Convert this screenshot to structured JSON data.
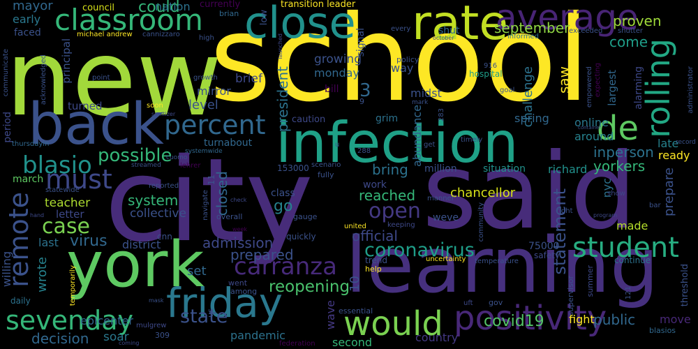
{
  "words": [
    {
      "text": "new",
      "color": "#a2d93b"
    },
    {
      "text": "school",
      "color": "#fde725"
    },
    {
      "text": "city",
      "color": "#472c7a"
    },
    {
      "text": "said",
      "color": "#472c7a"
    },
    {
      "text": "york",
      "color": "#5ec962"
    },
    {
      "text": "learning",
      "color": "#46307e"
    },
    {
      "text": "back",
      "color": "#3b528b"
    },
    {
      "text": "infection",
      "color": "#1fa187"
    },
    {
      "text": "rate",
      "color": "#c2df23"
    },
    {
      "text": "average",
      "color": "#482475"
    },
    {
      "text": "close",
      "color": "#21918c"
    },
    {
      "text": "classroom",
      "color": "#35b779"
    },
    {
      "text": "friday",
      "color": "#2a788e"
    },
    {
      "text": "positivity",
      "color": "#482878"
    },
    {
      "text": "would",
      "color": "#7ad151"
    },
    {
      "text": "sevenday",
      "color": "#35b779"
    },
    {
      "text": "remote",
      "color": "#3b528b"
    },
    {
      "text": "rolling",
      "color": "#22a884"
    },
    {
      "text": "de",
      "color": "#5ec962"
    },
    {
      "text": "student",
      "color": "#27ad81"
    },
    {
      "text": "percent",
      "color": "#31688e"
    },
    {
      "text": "must",
      "color": "#3e4989"
    },
    {
      "text": "blasio",
      "color": "#21918c"
    },
    {
      "text": "possible",
      "color": "#35b779"
    },
    {
      "text": "case",
      "color": "#7ad151"
    },
    {
      "text": "carranza",
      "color": "#472a7a"
    },
    {
      "text": "coronavirus",
      "color": "#1f9e89"
    },
    {
      "text": "open",
      "color": "#443983"
    },
    {
      "text": "reopening",
      "color": "#4ac16d"
    },
    {
      "text": "state",
      "color": "#3b528b"
    },
    {
      "text": "covid19",
      "color": "#54c568"
    },
    {
      "text": "mayor",
      "color": "#31688e"
    },
    {
      "text": "early",
      "color": "#2a788e"
    },
    {
      "text": "faced",
      "color": "#3b528b"
    },
    {
      "text": "council",
      "color": "#d8e219"
    },
    {
      "text": "could",
      "color": "#35b779"
    },
    {
      "text": "nation",
      "color": "#2c728e"
    },
    {
      "text": "currently",
      "color": "#440154"
    },
    {
      "text": "brian",
      "color": "#31688e"
    },
    {
      "text": "low",
      "color": "#3b528b"
    },
    {
      "text": "transition leader",
      "color": "#fde725"
    },
    {
      "text": "september",
      "color": "#90d743"
    },
    {
      "text": "proven",
      "color": "#9fda3a"
    },
    {
      "text": "come",
      "color": "#1f9e89"
    },
    {
      "text": "late",
      "color": "#26828e"
    },
    {
      "text": "ready",
      "color": "#fde725"
    },
    {
      "text": "prepare",
      "color": "#3b528b"
    },
    {
      "text": "inperson",
      "color": "#2c728e"
    },
    {
      "text": "yorkers",
      "color": "#35b779"
    },
    {
      "text": "richard",
      "color": "#21918c"
    },
    {
      "text": "nyc",
      "color": "#2c728e"
    },
    {
      "text": "made",
      "color": "#b5de2b"
    },
    {
      "text": "public",
      "color": "#31688e"
    },
    {
      "text": "fight",
      "color": "#fde725"
    },
    {
      "text": "move",
      "color": "#482878"
    },
    {
      "text": "statement",
      "color": "#3b528b"
    },
    {
      "text": "chancellor",
      "color": "#d8e219"
    },
    {
      "text": "situation",
      "color": "#21918c"
    },
    {
      "text": "million",
      "color": "#3b528b"
    },
    {
      "text": "bring",
      "color": "#2c728e"
    },
    {
      "text": "reached",
      "color": "#35b779"
    },
    {
      "text": "official",
      "color": "#3e4989"
    },
    {
      "text": "prepared",
      "color": "#3b528b"
    },
    {
      "text": "admission",
      "color": "#3e4989"
    },
    {
      "text": "closed",
      "color": "#31688e"
    },
    {
      "text": "system",
      "color": "#35b779"
    },
    {
      "text": "collective",
      "color": "#3b528b"
    },
    {
      "text": "go",
      "color": "#26828e"
    },
    {
      "text": "teacher",
      "color": "#addc30"
    },
    {
      "text": "letter",
      "color": "#3e4989"
    },
    {
      "text": "virus",
      "color": "#31688e"
    },
    {
      "text": "district",
      "color": "#3b528b"
    },
    {
      "text": "last",
      "color": "#2c728e"
    },
    {
      "text": "wrote",
      "color": "#26828e"
    },
    {
      "text": "willing",
      "color": "#3b528b"
    },
    {
      "text": "march",
      "color": "#5ec962"
    },
    {
      "text": "blasios",
      "color": "#31688e"
    },
    {
      "text": "decision",
      "color": "#31688e"
    },
    {
      "text": "soar",
      "color": "#2a788e"
    },
    {
      "text": "pandemic",
      "color": "#2c728e"
    },
    {
      "text": "second",
      "color": "#35b779"
    },
    {
      "text": "country",
      "color": "#443983"
    },
    {
      "text": "epicenter",
      "color": "#31688e"
    },
    {
      "text": "set",
      "color": "#31688e"
    },
    {
      "text": "wave",
      "color": "#443983"
    },
    {
      "text": "10",
      "color": "#3b528b"
    },
    {
      "text": "3",
      "color": "#31688e"
    },
    {
      "text": "growing",
      "color": "#3b528b"
    },
    {
      "text": "monday",
      "color": "#31688e"
    },
    {
      "text": "brief",
      "color": "#3e4989"
    },
    {
      "text": "president",
      "color": "#2c728e"
    },
    {
      "text": "mirror",
      "color": "#3b528b"
    },
    {
      "text": "midst",
      "color": "#3b528b"
    },
    {
      "text": "bill",
      "color": "#440154"
    },
    {
      "text": "saw",
      "color": "#fde725"
    },
    {
      "text": "way",
      "color": "#3b528b"
    },
    {
      "text": "abundance",
      "color": "#31688e"
    },
    {
      "text": "challenge",
      "color": "#2c728e"
    },
    {
      "text": "largest",
      "color": "#31688e"
    },
    {
      "text": "alarming",
      "color": "#3e4989"
    },
    {
      "text": "hospital",
      "color": "#1f9e89"
    },
    {
      "text": "around",
      "color": "#26828e"
    },
    {
      "text": "online",
      "color": "#2a788e"
    },
    {
      "text": "spring",
      "color": "#31688e"
    },
    {
      "text": "level",
      "color": "#3b528b"
    },
    {
      "text": "turned",
      "color": "#3e4989"
    },
    {
      "text": "principal",
      "color": "#3b528b"
    },
    {
      "text": "period",
      "color": "#3e4989"
    },
    {
      "text": "caution",
      "color": "#3e4989"
    },
    {
      "text": "grim",
      "color": "#2c728e"
    },
    {
      "text": "shut",
      "color": "#31688e"
    },
    {
      "text": "signal",
      "color": "#3b528b"
    },
    {
      "text": "turnabout",
      "color": "#31688e"
    },
    {
      "text": "work",
      "color": "#3e4989"
    },
    {
      "text": "class",
      "color": "#3b528b"
    },
    {
      "text": "weve",
      "color": "#3b528b"
    },
    {
      "text": "quickly",
      "color": "#3b528b"
    },
    {
      "text": "united",
      "color": "#fde725"
    },
    {
      "text": "75000",
      "color": "#3b528b"
    },
    {
      "text": "safety",
      "color": "#3e4989"
    },
    {
      "text": "continue",
      "color": "#2c728e"
    },
    {
      "text": "threshold",
      "color": "#3b528b"
    },
    {
      "text": "supervisor",
      "color": "#3b528b"
    },
    {
      "text": "summer",
      "color": "#3e4989"
    },
    {
      "text": "temperature",
      "color": "#3b528b"
    },
    {
      "text": "uncertainty",
      "color": "#fde725"
    },
    {
      "text": "trend",
      "color": "#3b528b"
    },
    {
      "text": "help",
      "color": "#fde725"
    },
    {
      "text": "essential",
      "color": "#3b528b"
    },
    {
      "text": "federation",
      "color": "#440154"
    },
    {
      "text": "gov",
      "color": "#3b528b"
    },
    {
      "text": "uft",
      "color": "#3e4989"
    },
    {
      "text": "among",
      "color": "#3b528b"
    },
    {
      "text": "went",
      "color": "#3e4989"
    },
    {
      "text": "us",
      "color": "#3b528b"
    },
    {
      "text": "cnn",
      "color": "#3b528b"
    },
    {
      "text": "mulgrew",
      "color": "#3e4989"
    },
    {
      "text": "coming",
      "color": "#3e4989"
    },
    {
      "text": "309",
      "color": "#3b528b"
    },
    {
      "text": "daily",
      "color": "#2c728e"
    },
    {
      "text": "temporarily",
      "color": "#fde725"
    },
    {
      "text": "mask",
      "color": "#3b528b"
    },
    {
      "text": "statewide",
      "color": "#3b528b"
    },
    {
      "text": "reported",
      "color": "#3b528b"
    },
    {
      "text": "hand",
      "color": "#3e4989"
    },
    {
      "text": "navigate",
      "color": "#3b528b"
    },
    {
      "text": "overall",
      "color": "#3b528b"
    },
    {
      "text": "gauge",
      "color": "#3b528b"
    },
    {
      "text": "check",
      "color": "#3e4989"
    },
    {
      "text": "week",
      "color": "#440154"
    },
    {
      "text": "11",
      "color": "#3b528b"
    },
    {
      "text": "153000",
      "color": "#3b528b"
    },
    {
      "text": "scenario",
      "color": "#3b528b"
    },
    {
      "text": "fully",
      "color": "#3b528b"
    },
    {
      "text": "288",
      "color": "#3b528b"
    },
    {
      "text": "u",
      "color": "#3b528b"
    },
    {
      "text": "manner",
      "color": "#3b528b"
    },
    {
      "text": "keeping",
      "color": "#3e4989"
    },
    {
      "text": "community",
      "color": "#3b528b"
    },
    {
      "text": "show",
      "color": "#3e4989"
    },
    {
      "text": "bar",
      "color": "#3b528b"
    },
    {
      "text": "right",
      "color": "#3b528b"
    },
    {
      "text": "program",
      "color": "#3e4989"
    },
    {
      "text": "lehrer",
      "color": "#440154"
    },
    {
      "text": "streamed",
      "color": "#3b528b"
    },
    {
      "text": "systemwide",
      "color": "#31688e"
    },
    {
      "text": "cuomo",
      "color": "#3b528b"
    },
    {
      "text": "thursdayin",
      "color": "#31688e"
    },
    {
      "text": "sanitizer",
      "color": "#3e4989"
    },
    {
      "text": "soon",
      "color": "#fde725"
    },
    {
      "text": "growth",
      "color": "#3b528b"
    },
    {
      "text": "acknowledged",
      "color": "#3b528b"
    },
    {
      "text": "communicate",
      "color": "#3b528b"
    },
    {
      "text": "point",
      "color": "#3b528b"
    },
    {
      "text": "michael andrew",
      "color": "#fde725"
    },
    {
      "text": "cannizzaro",
      "color": "#3b528b"
    },
    {
      "text": "high",
      "color": "#3b528b"
    },
    {
      "text": "launched",
      "color": "#3e4989"
    },
    {
      "text": "every",
      "color": "#3b528b"
    },
    {
      "text": "policy",
      "color": "#3b528b"
    },
    {
      "text": "october",
      "color": "#3b528b"
    },
    {
      "text": "916",
      "color": "#3b528b"
    },
    {
      "text": "informed",
      "color": "#2c728e"
    },
    {
      "text": "exceeded",
      "color": "#3b528b"
    },
    {
      "text": "shutter",
      "color": "#3b528b"
    },
    {
      "text": "empowered",
      "color": "#3b528b"
    },
    {
      "text": "expecting",
      "color": "#440154"
    },
    {
      "text": "administrator",
      "color": "#3b528b"
    },
    {
      "text": "goal",
      "color": "#3b528b"
    },
    {
      "text": "mark",
      "color": "#3b528b"
    },
    {
      "text": "9",
      "color": "#3b528b"
    },
    {
      "text": "283",
      "color": "#3b528b"
    },
    {
      "text": "timely",
      "color": "#3b528b"
    },
    {
      "text": "get",
      "color": "#3b528b"
    },
    {
      "text": "container",
      "color": "#3b528b"
    },
    {
      "text": "record",
      "color": "#3b528b"
    },
    {
      "text": "121",
      "color": "#3b528b"
    }
  ]
}
